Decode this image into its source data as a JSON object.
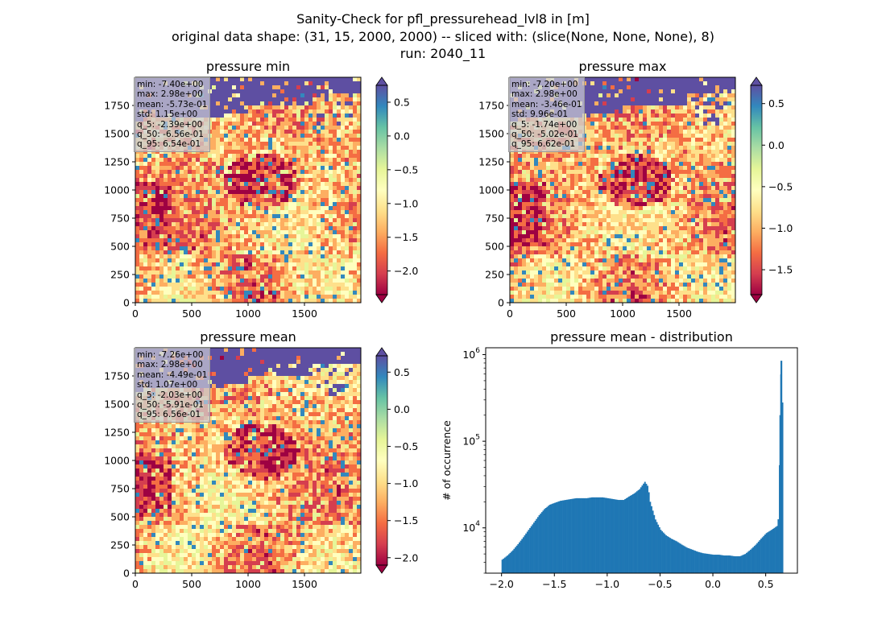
{
  "figure": {
    "title_lines": [
      "Sanity-Check for pfl_pressurehead_lvl8 in [m]",
      "original data shape: (31, 15, 2000, 2000) -- sliced with: (slice(None, None, None), 8)",
      "run: 2040_11"
    ],
    "colormap": [
      "#9e0142",
      "#d53e4f",
      "#f46d43",
      "#fdae61",
      "#fee08b",
      "#ffffbf",
      "#e6f598",
      "#abdda4",
      "#66c2a5",
      "#3288bd",
      "#5e4fa2"
    ]
  },
  "maps": [
    {
      "title": "pressure min",
      "x_ticks": [
        "0",
        "500",
        "1000",
        "1500"
      ],
      "y_ticks": [
        "0",
        "250",
        "500",
        "750",
        "1000",
        "1250",
        "1500",
        "1750"
      ],
      "colorbar_ticks": [
        "0.5",
        "0.0",
        "−0.5",
        "−1.0",
        "−1.5",
        "−2.0"
      ],
      "colorbar_range": [
        -2.35,
        0.75
      ],
      "stats": [
        "min: -7.40e+00",
        "max: 2.98e+00",
        "mean: -5.73e-01",
        "std: 1.15e+00",
        "q_5: -2.39e+00",
        "q_50: -6.56e-01",
        "q_95: 6.54e-01"
      ]
    },
    {
      "title": "pressure max",
      "x_ticks": [
        "0",
        "500",
        "1000",
        "1500"
      ],
      "y_ticks": [
        "0",
        "250",
        "500",
        "750",
        "1000",
        "1250",
        "1500",
        "1750"
      ],
      "colorbar_ticks": [
        "0.5",
        "0.0",
        "−0.5",
        "−1.0",
        "−1.5"
      ],
      "colorbar_range": [
        -1.8,
        0.72
      ],
      "stats": [
        "min: -7.20e+00",
        "max: 2.98e+00",
        "mean: -3.46e-01",
        "std: 9.96e-01",
        "q_5: -1.74e+00",
        "q_50: -5.02e-01",
        "q_95: 6.62e-01"
      ]
    },
    {
      "title": "pressure mean",
      "x_ticks": [
        "0",
        "500",
        "1000",
        "1500"
      ],
      "y_ticks": [
        "0",
        "250",
        "500",
        "750",
        "1000",
        "1250",
        "1500",
        "1750"
      ],
      "colorbar_ticks": [
        "0.5",
        "0.0",
        "−0.5",
        "−1.0",
        "−1.5",
        "−2.0"
      ],
      "colorbar_range": [
        -2.1,
        0.72
      ],
      "stats": [
        "min: -7.26e+00",
        "max: 2.98e+00",
        "mean: -4.49e-01",
        "std: 1.07e+00",
        "q_5: -2.03e+00",
        "q_50: -5.91e-01",
        "q_95: 6.56e-01"
      ]
    }
  ],
  "chart_data": {
    "type": "bar",
    "title": "pressure mean - distribution",
    "xlabel": "",
    "ylabel": "# of occurrence",
    "yscale": "log",
    "xlim": [
      -2.15,
      0.8
    ],
    "ylim": [
      3000,
      1200000
    ],
    "x_ticks": [
      "−2.0",
      "−1.5",
      "−1.0",
      "−0.5",
      "0.0",
      "0.5"
    ],
    "y_ticks": [
      "10^4",
      "10^5",
      "10^6"
    ],
    "bar_color": "#1f77b4",
    "x": [
      -2.0,
      -1.95,
      -1.9,
      -1.85,
      -1.8,
      -1.75,
      -1.7,
      -1.65,
      -1.6,
      -1.55,
      -1.5,
      -1.45,
      -1.4,
      -1.35,
      -1.3,
      -1.25,
      -1.2,
      -1.15,
      -1.1,
      -1.05,
      -1.0,
      -0.95,
      -0.9,
      -0.85,
      -0.8,
      -0.75,
      -0.7,
      -0.65,
      -0.62,
      -0.6,
      -0.55,
      -0.5,
      -0.45,
      -0.4,
      -0.35,
      -0.3,
      -0.25,
      -0.2,
      -0.15,
      -0.1,
      -0.05,
      0.0,
      0.05,
      0.1,
      0.15,
      0.2,
      0.25,
      0.3,
      0.35,
      0.4,
      0.45,
      0.5,
      0.55,
      0.6,
      0.62,
      0.63,
      0.64,
      0.65
    ],
    "values": [
      4300,
      4800,
      5500,
      6500,
      7800,
      9500,
      11500,
      14000,
      16500,
      18500,
      19500,
      20500,
      21000,
      21500,
      22000,
      22000,
      22000,
      22500,
      22500,
      22500,
      22000,
      21500,
      21000,
      21000,
      23000,
      25000,
      28000,
      34000,
      30000,
      20000,
      12500,
      9500,
      8200,
      7500,
      7000,
      6400,
      5900,
      5600,
      5300,
      5100,
      5000,
      4900,
      4900,
      4800,
      4800,
      4700,
      4700,
      5000,
      5600,
      6400,
      7500,
      8700,
      9500,
      10500,
      14000,
      200000,
      850000,
      280000
    ]
  }
}
